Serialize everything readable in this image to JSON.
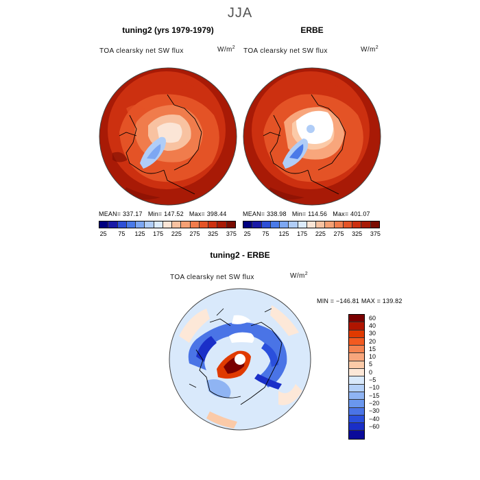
{
  "title": "JJA",
  "panels": [
    {
      "title": "tuning2 (yrs 1979-1979)",
      "variable": "TOA clearsky net SW flux",
      "units": "W/m",
      "units_exp": "2",
      "mean_label": "MEAN=",
      "mean": "337.17",
      "min_label": "Min=",
      "min": "147.52",
      "max_label": "Max=",
      "max": "398.44"
    },
    {
      "title": "ERBE",
      "variable": "TOA clearsky net SW flux",
      "units": "W/m",
      "units_exp": "2",
      "mean_label": "MEAN=",
      "mean": "338.98",
      "min_label": "Min=",
      "min": "114.56",
      "max_label": "Max=",
      "max": "401.07"
    }
  ],
  "diff_panel": {
    "title": "tuning2 - ERBE",
    "variable": "TOA clearsky net SW flux",
    "units": "W/m",
    "units_exp": "2",
    "minmax": "MIN = −146.81  MAX = 139.82"
  },
  "colorbar_top": {
    "colors": [
      "#00007f",
      "#1a1aa6",
      "#2e4fd6",
      "#4a7ae8",
      "#7da7f2",
      "#b0cdf7",
      "#dcebfc",
      "#fbe5d6",
      "#f8c2a1",
      "#f5a074",
      "#f07c4c",
      "#e45326",
      "#cc3010",
      "#a81a06",
      "#7a0c02"
    ],
    "ticks": [
      "25",
      "75",
      "125",
      "175",
      "225",
      "275",
      "325",
      "375"
    ]
  },
  "colorbar_diff": {
    "colors": [
      "#7a0000",
      "#b01500",
      "#e03a00",
      "#f35a20",
      "#f58350",
      "#f8a67c",
      "#fbcaa8",
      "#fde8d8",
      "#d9e9fb",
      "#b4d0f8",
      "#8fb4f3",
      "#6a97ee",
      "#4a74e6",
      "#2a4fdc",
      "#1a2fc8",
      "#0a0a9a"
    ],
    "ticks": [
      "60",
      "40",
      "30",
      "20",
      "15",
      "10",
      "5",
      "0",
      "−5",
      "−10",
      "−15",
      "−20",
      "−30",
      "−40",
      "−60"
    ]
  }
}
